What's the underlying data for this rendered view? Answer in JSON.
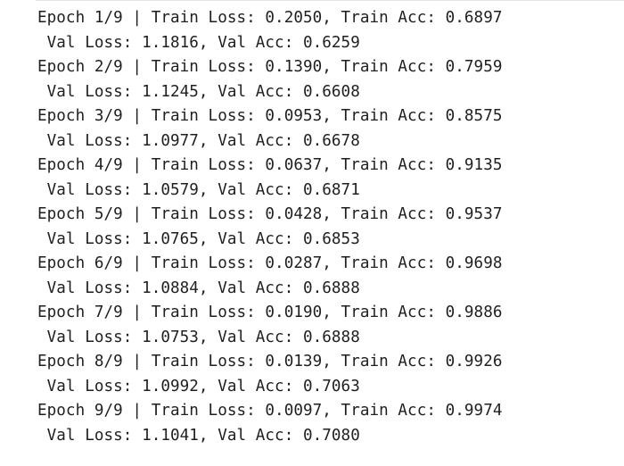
{
  "output": {
    "lines": [
      "Epoch 1/9 | Train Loss: 0.2050, Train Acc: 0.6897",
      " Val Loss: 1.1816, Val Acc: 0.6259",
      "Epoch 2/9 | Train Loss: 0.1390, Train Acc: 0.7959",
      " Val Loss: 1.1245, Val Acc: 0.6608",
      "Epoch 3/9 | Train Loss: 0.0953, Train Acc: 0.8575",
      " Val Loss: 1.0977, Val Acc: 0.6678",
      "Epoch 4/9 | Train Loss: 0.0637, Train Acc: 0.9135",
      " Val Loss: 1.0579, Val Acc: 0.6871",
      "Epoch 5/9 | Train Loss: 0.0428, Train Acc: 0.9537",
      " Val Loss: 1.0765, Val Acc: 0.6853",
      "Epoch 6/9 | Train Loss: 0.0287, Train Acc: 0.9698",
      " Val Loss: 1.0884, Val Acc: 0.6888",
      "Epoch 7/9 | Train Loss: 0.0190, Train Acc: 0.9886",
      " Val Loss: 1.0753, Val Acc: 0.6888",
      "Epoch 8/9 | Train Loss: 0.0139, Train Acc: 0.9926",
      " Val Loss: 1.0992, Val Acc: 0.7063",
      "Epoch 9/9 | Train Loss: 0.0097, Train Acc: 0.9974",
      " Val Loss: 1.1041, Val Acc: 0.7080"
    ]
  }
}
